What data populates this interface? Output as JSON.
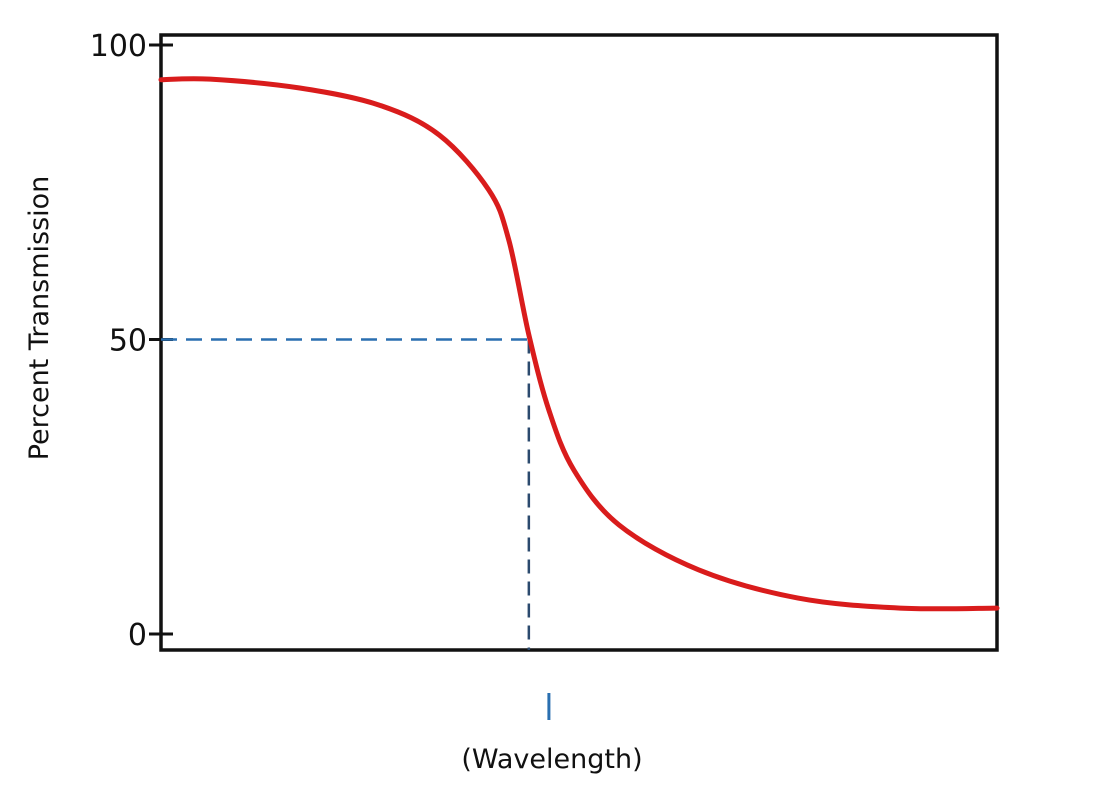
{
  "chart_data": {
    "type": "line",
    "title": "",
    "xlabel": "(Wavelength)",
    "ylabel": "Percent Transmission",
    "ylim": [
      0,
      100
    ],
    "xlim": [
      0,
      100
    ],
    "yticks": [
      "0",
      "50",
      "100"
    ],
    "ytick_values": [
      0,
      50,
      100
    ],
    "grid": false,
    "series": [
      {
        "color": "#d91c1c",
        "x": [
          0,
          5.9,
          16.6,
          26.1,
          33.3,
          39.2,
          41.6,
          44.0,
          46.4,
          49.4,
          54.8,
          64.3,
          76.2,
          88.4,
          100
        ],
        "y": [
          94.1,
          94.2,
          92.7,
          89.8,
          84.7,
          75.4,
          66.9,
          50.8,
          38.0,
          27.8,
          18.5,
          10.9,
          6.1,
          4.4,
          4.4
        ]
      }
    ],
    "annotations": {
      "half_transmission": {
        "x": 44.0,
        "y": 50,
        "color": "#2a6fb0",
        "style": "dashed"
      },
      "marker": {
        "x": 46.4,
        "color": "#2a6fb0"
      }
    },
    "axis_color": "#111111"
  }
}
